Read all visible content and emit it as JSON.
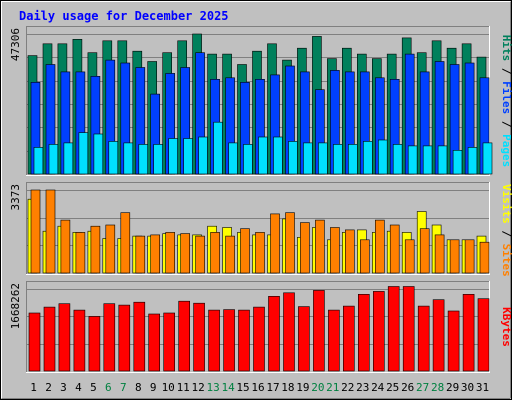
{
  "title": "Daily usage for December 2025",
  "colors": {
    "background": "#c0c0c0",
    "plot_bg": "#c0c0c0",
    "grid": "#808080",
    "hits": "#00805c",
    "files": "#0040ff",
    "pages": "#00e0ff",
    "visits": "#ffff00",
    "sites": "#ff8000",
    "kbytes": "#ff0000",
    "title": "#0000ff",
    "weekend_day": "#008040",
    "weekday": "#000000",
    "separator": "#000000"
  },
  "chart_data": [
    {
      "type": "bar",
      "panel": "hits_files_pages",
      "categories": [
        "1",
        "2",
        "3",
        "4",
        "5",
        "6",
        "7",
        "8",
        "9",
        "10",
        "11",
        "12",
        "13",
        "14",
        "15",
        "16",
        "17",
        "18",
        "19",
        "20",
        "21",
        "22",
        "23",
        "24",
        "25",
        "26",
        "27",
        "28",
        "29",
        "30",
        "31"
      ],
      "ylim": [
        0,
        47306
      ],
      "tick_labels": [
        "47306"
      ],
      "axis_label_parts": [
        {
          "text": "Pages",
          "series": "Pages"
        },
        {
          "text": " / ",
          "series": null
        },
        {
          "text": "Files",
          "series": "Files"
        },
        {
          "text": " / ",
          "series": null
        },
        {
          "text": "Hits",
          "series": "Hits"
        }
      ],
      "series": [
        {
          "name": "Hits",
          "color_key": "hits",
          "values": [
            40000,
            44000,
            44000,
            45500,
            41000,
            45000,
            45000,
            41500,
            38000,
            41000,
            45000,
            47306,
            40500,
            40500,
            37000,
            41500,
            44000,
            38500,
            42500,
            46500,
            39000,
            42500,
            40500,
            39000,
            40500,
            46000,
            41000,
            45000,
            42500,
            44000,
            39500
          ]
        },
        {
          "name": "Files",
          "color_key": "files",
          "values": [
            31000,
            37000,
            34500,
            34500,
            33000,
            38500,
            37500,
            36000,
            27000,
            34000,
            36000,
            41000,
            32000,
            32500,
            31000,
            32000,
            33500,
            36500,
            34500,
            28500,
            35000,
            34500,
            34500,
            32500,
            32000,
            40500,
            34500,
            38000,
            37000,
            37500,
            32500
          ]
        },
        {
          "name": "Pages",
          "color_key": "pages",
          "values": [
            9000,
            10000,
            10500,
            14000,
            13500,
            11000,
            10500,
            10000,
            10000,
            12000,
            12000,
            12500,
            17500,
            10500,
            10000,
            12500,
            12500,
            11000,
            10500,
            10500,
            10000,
            10000,
            11000,
            11500,
            10000,
            9500,
            9500,
            9500,
            8000,
            9000,
            10500
          ]
        }
      ]
    },
    {
      "type": "bar",
      "panel": "visits_sites",
      "categories": [
        "1",
        "2",
        "3",
        "4",
        "5",
        "6",
        "7",
        "8",
        "9",
        "10",
        "11",
        "12",
        "13",
        "14",
        "15",
        "16",
        "17",
        "18",
        "19",
        "20",
        "21",
        "22",
        "23",
        "24",
        "25",
        "26",
        "27",
        "28",
        "29",
        "30",
        "31"
      ],
      "ylim": [
        0,
        3373
      ],
      "tick_labels": [
        "3373"
      ],
      "axis_label_parts": [
        {
          "text": "Sites",
          "series": "Sites"
        },
        {
          "text": " / ",
          "series": null
        },
        {
          "text": "Visits",
          "series": "Visits"
        }
      ],
      "series": [
        {
          "name": "Visits",
          "color_key": "visits",
          "values": [
            3000,
            1700,
            1900,
            1650,
            1700,
            1400,
            1400,
            1500,
            1500,
            1600,
            1550,
            1550,
            1900,
            1850,
            1650,
            1550,
            1550,
            2200,
            1450,
            1850,
            1350,
            1650,
            1750,
            1650,
            1700,
            1650,
            2500,
            1950,
            1350,
            1350,
            1500
          ]
        },
        {
          "name": "Sites",
          "color_key": "sites",
          "values": [
            3373,
            3373,
            2150,
            1650,
            1900,
            1950,
            2450,
            1500,
            1550,
            1650,
            1600,
            1500,
            1650,
            1500,
            1800,
            1650,
            2400,
            2450,
            2050,
            2150,
            1850,
            1750,
            1350,
            2150,
            1950,
            1350,
            1800,
            1550,
            1350,
            1350,
            1250
          ]
        }
      ]
    },
    {
      "type": "bar",
      "panel": "kbytes",
      "categories": [
        "1",
        "2",
        "3",
        "4",
        "5",
        "6",
        "7",
        "8",
        "9",
        "10",
        "11",
        "12",
        "13",
        "14",
        "15",
        "16",
        "17",
        "18",
        "19",
        "20",
        "21",
        "22",
        "23",
        "24",
        "25",
        "26",
        "27",
        "28",
        "29",
        "30",
        "31"
      ],
      "ylim": [
        0,
        1668262
      ],
      "tick_labels": [
        "1668262"
      ],
      "axis_label_parts": [
        {
          "text": "KBytes",
          "series": "KBytes"
        }
      ],
      "series": [
        {
          "name": "KBytes",
          "color_key": "kbytes",
          "values": [
            1180000,
            1300000,
            1370000,
            1240000,
            1110000,
            1370000,
            1340000,
            1400000,
            1160000,
            1180000,
            1420000,
            1380000,
            1240000,
            1250000,
            1240000,
            1300000,
            1520000,
            1590000,
            1310000,
            1640000,
            1240000,
            1320000,
            1560000,
            1620000,
            1720000,
            1720000,
            1320000,
            1450000,
            1220000,
            1560000,
            1470000
          ]
        }
      ]
    }
  ],
  "x_day_types": [
    "weekday",
    "weekday",
    "weekday",
    "weekday",
    "weekday",
    "weekend",
    "weekend",
    "weekday",
    "weekday",
    "weekday",
    "weekday",
    "weekday",
    "weekend",
    "weekend",
    "weekday",
    "weekday",
    "weekday",
    "weekday",
    "weekday",
    "weekend",
    "weekend",
    "weekday",
    "weekday",
    "weekday",
    "weekday",
    "weekday",
    "weekend",
    "weekend",
    "weekday",
    "weekday",
    "weekday"
  ]
}
